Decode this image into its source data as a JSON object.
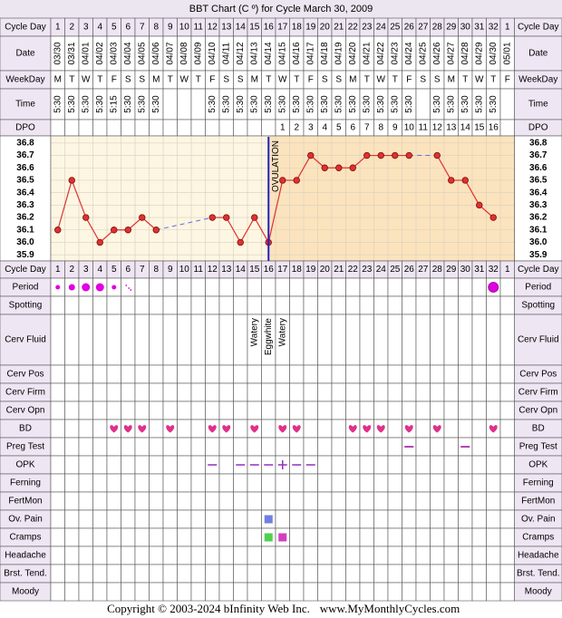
{
  "chart_data": {
    "type": "line",
    "title": "BBT Chart (C º) for Cycle March 30, 2009",
    "categories": [
      "1",
      "2",
      "3",
      "4",
      "5",
      "6",
      "7",
      "8",
      "9",
      "10",
      "11",
      "12",
      "13",
      "14",
      "15",
      "16",
      "17",
      "18",
      "19",
      "20",
      "21",
      "22",
      "23",
      "24",
      "25",
      "26",
      "27",
      "28",
      "29",
      "30",
      "31",
      "32",
      "1"
    ],
    "dates": [
      "03/30",
      "03/31",
      "04/01",
      "04/02",
      "04/03",
      "04/04",
      "04/05",
      "04/06",
      "04/07",
      "04/08",
      "04/09",
      "04/10",
      "04/11",
      "04/12",
      "04/13",
      "04/14",
      "04/15",
      "04/16",
      "04/17",
      "04/18",
      "04/19",
      "04/20",
      "04/21",
      "04/22",
      "04/23",
      "04/24",
      "04/25",
      "04/26",
      "04/27",
      "04/28",
      "04/29",
      "04/30",
      "05/01"
    ],
    "weekdays": [
      "M",
      "T",
      "W",
      "T",
      "F",
      "S",
      "S",
      "M",
      "T",
      "W",
      "T",
      "F",
      "S",
      "S",
      "M",
      "T",
      "W",
      "T",
      "F",
      "S",
      "S",
      "M",
      "T",
      "W",
      "T",
      "F",
      "S",
      "S",
      "M",
      "T",
      "W",
      "T",
      "F"
    ],
    "times": [
      "5:30",
      "5:30",
      "5:30",
      "5:30",
      "5:15",
      "5:30",
      "5:30",
      "5:30",
      null,
      null,
      null,
      "5:30",
      "5:30",
      "5:30",
      "5:30",
      "5:30",
      "5:30",
      "5:30",
      "5:30",
      "5:30",
      "5:30",
      "5:30",
      "5:30",
      "5:30",
      "5:30",
      "5:30",
      null,
      "5:30",
      "5:30",
      "5:30",
      "5:30",
      "5:30",
      null
    ],
    "dpo": [
      null,
      null,
      null,
      null,
      null,
      null,
      null,
      null,
      null,
      null,
      null,
      null,
      null,
      null,
      null,
      null,
      1,
      2,
      3,
      4,
      5,
      6,
      7,
      8,
      9,
      10,
      11,
      12,
      13,
      14,
      15,
      16,
      null
    ],
    "values": [
      36.1,
      36.5,
      36.2,
      36.0,
      36.1,
      36.1,
      36.2,
      36.1,
      null,
      null,
      null,
      36.2,
      36.2,
      36.0,
      36.2,
      36.0,
      36.5,
      36.5,
      36.7,
      36.6,
      36.6,
      36.6,
      36.7,
      36.7,
      36.7,
      36.7,
      null,
      36.7,
      36.5,
      36.5,
      36.3,
      36.2,
      null
    ],
    "color": "#e03030",
    "ylim": [
      35.85,
      36.85
    ],
    "yticks": [
      35.9,
      {
        "value": 36,
        "label": "36.0"
      },
      36.1,
      36.2,
      36.3,
      36.4,
      36.5,
      36.6,
      36.7,
      36.8
    ],
    "grid": true,
    "ovulation_label": "OVULATION",
    "row_labels": {
      "cycle_day": "Cycle Day",
      "date": "Date",
      "weekday": "WeekDay",
      "time": "Time",
      "dpo": "DPO"
    }
  },
  "observations": [
    {
      "label": "Period"
    },
    {
      "label": "Spotting"
    },
    {
      "label": "Cerv Fluid",
      "values": [
        null,
        null,
        null,
        null,
        null,
        null,
        null,
        null,
        null,
        null,
        null,
        null,
        null,
        null,
        "Watery",
        "Eggwhite",
        "Watery",
        null,
        null,
        null,
        null,
        null,
        null,
        null,
        null,
        null,
        null,
        null,
        null,
        null,
        null,
        null,
        null
      ]
    },
    {
      "label": "Cerv Pos"
    },
    {
      "label": "Cerv Firm"
    },
    {
      "label": "Cerv Opn"
    },
    {
      "label": "BD"
    },
    {
      "label": "Preg Test"
    },
    {
      "label": "OPK"
    },
    {
      "label": "Ferning"
    },
    {
      "label": "FertMon"
    },
    {
      "label": "Ov. Pain"
    },
    {
      "label": "Cramps"
    },
    {
      "label": "Headache"
    },
    {
      "label": "Brst. Tend."
    },
    {
      "label": "Moody"
    }
  ],
  "footer": {
    "copyright": "Copyright © 2003-2024 bInfinity Web Inc.",
    "site": "www.MyMonthlyCycles.com"
  }
}
